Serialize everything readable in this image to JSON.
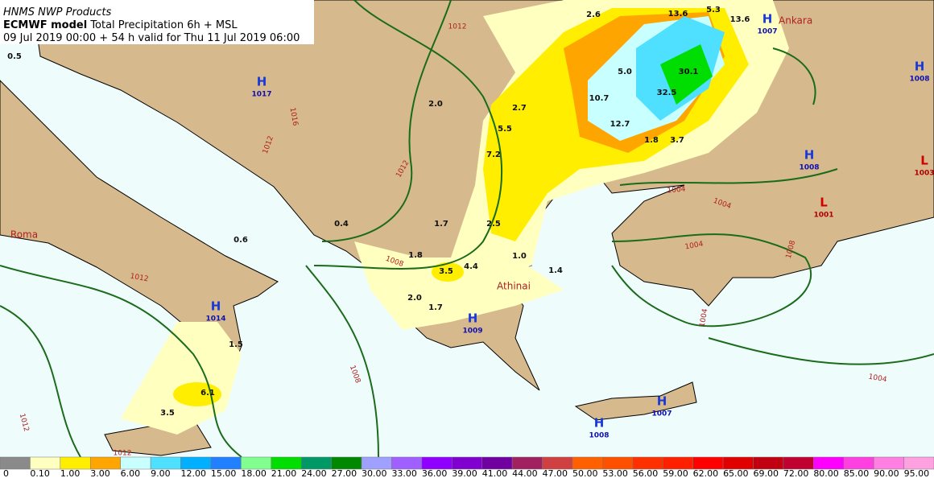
{
  "header": {
    "line1": "HNMS NWP Products",
    "model": "ECMWF model",
    "product": "Total Precipitation 6h + MSL",
    "valid": "09 Jul 2019 00:00 + 54 h valid for Thu 11 Jul 2019 06:00"
  },
  "pressure_centers": [
    {
      "letter": "H",
      "value": "1017"
    },
    {
      "letter": "H",
      "value": "1014"
    },
    {
      "letter": "H",
      "value": "1009"
    },
    {
      "letter": "H",
      "value": "1007"
    },
    {
      "letter": "H",
      "value": "1008"
    },
    {
      "letter": "H",
      "value": "1008"
    },
    {
      "letter": "L",
      "value": "1003"
    },
    {
      "letter": "L",
      "value": "1001"
    },
    {
      "letter": "H",
      "value": "1007"
    },
    {
      "letter": "H",
      "value": "1008"
    }
  ],
  "cities": [
    "Roma",
    "Athinai",
    "Ankara"
  ],
  "precipitation_labels": [
    "0.5",
    "2.0",
    "2.6",
    "13.6",
    "5.3",
    "13.6",
    "5.0",
    "30.1",
    "10.7",
    "32.5",
    "12.7",
    "1.8",
    "3.7",
    "2.7",
    "5.5",
    "7.2",
    "0.4",
    "1.7",
    "2.5",
    "0.6",
    "1.8",
    "3.5",
    "4.4",
    "1.0",
    "1.4",
    "2.0",
    "1.7",
    "1.5",
    "6.1",
    "3.5"
  ],
  "isobar_labels": [
    "1012",
    "1016",
    "1012",
    "1012",
    "1008",
    "1012",
    "1008",
    "1004",
    "1004",
    "1004",
    "1008",
    "1004",
    "1004",
    "1012",
    "1012"
  ],
  "legend": {
    "labels": [
      "0",
      "0.10",
      "1.00",
      "3.00",
      "6.00",
      "9.00",
      "12.00",
      "15.00",
      "18.00",
      "21.00",
      "24.00",
      "27.00",
      "30.00",
      "33.00",
      "36.00",
      "39.00",
      "41.00",
      "44.00",
      "47.00",
      "50.00",
      "53.00",
      "56.00",
      "59.00",
      "62.00",
      "65.00",
      "69.00",
      "72.00",
      "80.00",
      "85.00",
      "90.00",
      "95.00"
    ],
    "colors": [
      "#8a8a8a",
      "#ffffc0",
      "#ffee00",
      "#ffa500",
      "#c8ffff",
      "#50e0ff",
      "#00b0ff",
      "#2080ff",
      "#80ff90",
      "#00dd00",
      "#009966",
      "#008800",
      "#a0a0ff",
      "#a060ff",
      "#9000ff",
      "#8000d0",
      "#7000a0",
      "#a02060",
      "#d04040",
      "#ff6000",
      "#ff5000",
      "#ff3000",
      "#ff2000",
      "#ff0000",
      "#e00000",
      "#c00010",
      "#c00030",
      "#ff00ff",
      "#ff40e0",
      "#ff80e0",
      "#ffa0e0"
    ]
  }
}
